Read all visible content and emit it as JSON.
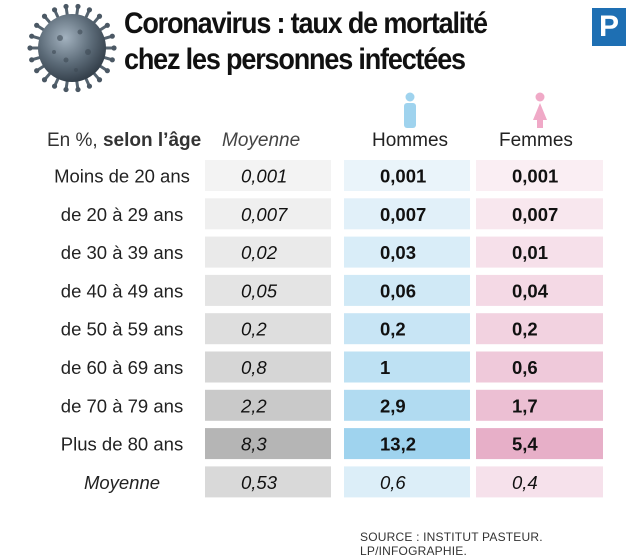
{
  "header": {
    "title_line1": "Coronavirus : taux de mortalité",
    "title_line2": "chez les personnes infectées",
    "logo_letter": "P"
  },
  "columns": {
    "age_prefix": "En %,",
    "age_bold": "selon l’âge",
    "average": "Moyenne",
    "men": "Hommes",
    "women": "Femmes"
  },
  "source": "SOURCE : INSTITUT PASTEUR.  LP/INFOGRAPHIE.",
  "icons": {
    "men": "male-person-icon",
    "women": "female-person-icon",
    "virus": "coronavirus-icon"
  },
  "colors": {
    "average_cells": [
      "#f3f3f3",
      "#efefef",
      "#eaeaea",
      "#e4e4e4",
      "#dedede",
      "#d6d6d6",
      "#c9c9c9",
      "#b5b5b5",
      "#d9d9d9"
    ],
    "men_cells": [
      "#eaf4fa",
      "#e1f0f9",
      "#d9edf8",
      "#d0e9f6",
      "#c8e5f5",
      "#bee1f3",
      "#b1dbf1",
      "#9fd3ee",
      "#dceef8"
    ],
    "women_cells": [
      "#faeef3",
      "#f8e7ee",
      "#f6e0ea",
      "#f4d9e5",
      "#f2d2e0",
      "#efc9da",
      "#ecbfd3",
      "#e7afc8",
      "#f6e1eb"
    ],
    "men_icon": "#9fd3ee",
    "women_icon": "#f0a9c7"
  },
  "chart_data": {
    "type": "table",
    "categories": [
      "Moins de 20 ans",
      "de 20 à 29 ans",
      "de 30 à 39 ans",
      "de 40 à 49 ans",
      "de 50 à 59 ans",
      "de 60 à 69 ans",
      "de 70 à 79 ans",
      "Plus de 80 ans",
      "Moyenne"
    ],
    "series": [
      {
        "name": "Moyenne",
        "values": [
          "0,001",
          "0,007",
          "0,02",
          "0,05",
          "0,2",
          "0,8",
          "2,2",
          "8,3",
          "0,53"
        ]
      },
      {
        "name": "Hommes",
        "values": [
          "0,001",
          "0,007",
          "0,03",
          "0,06",
          "0,2",
          "1",
          "2,9",
          "13,2",
          "0,6"
        ]
      },
      {
        "name": "Femmes",
        "values": [
          "0,001",
          "0,007",
          "0,01",
          "0,04",
          "0,2",
          "0,6",
          "1,7",
          "5,4",
          "0,4"
        ]
      }
    ]
  }
}
